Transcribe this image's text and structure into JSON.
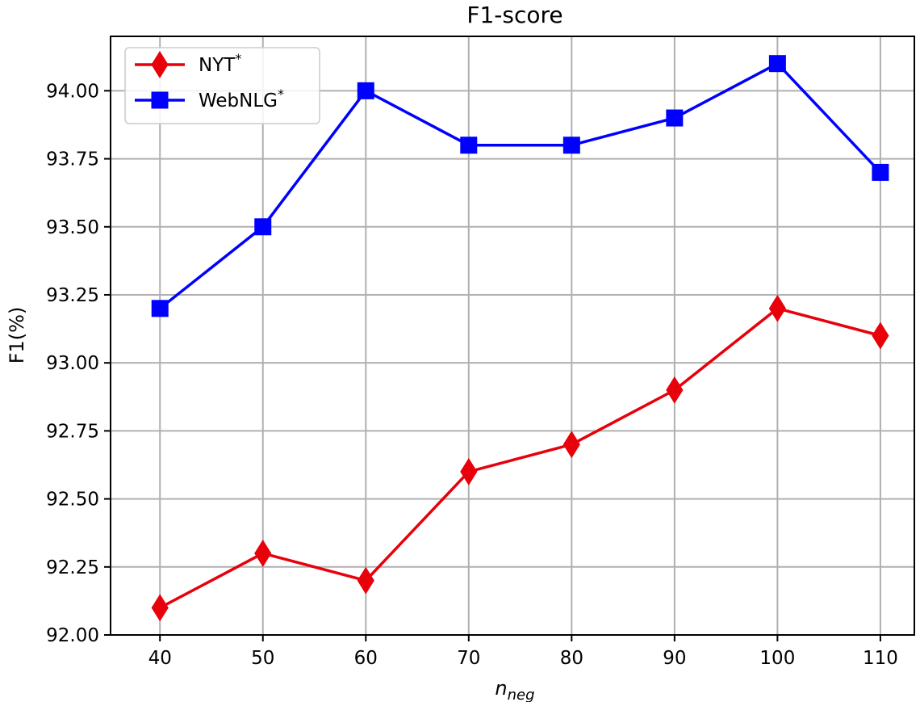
{
  "chart_data": {
    "type": "line",
    "title": "F1-score",
    "xlabel_main": "n",
    "xlabel_sub": "neg",
    "ylabel": "F1(%)",
    "x": [
      40,
      50,
      60,
      70,
      80,
      90,
      100,
      110
    ],
    "xlim": [
      35.2,
      113.3
    ],
    "ylim": [
      92.0,
      94.2
    ],
    "yticks": [
      "92.00",
      "92.25",
      "92.50",
      "92.75",
      "93.00",
      "93.25",
      "93.50",
      "93.75",
      "94.00"
    ],
    "xticks": [
      "40",
      "50",
      "60",
      "70",
      "80",
      "90",
      "100",
      "110"
    ],
    "grid": true,
    "legend_position": "upper left",
    "series": [
      {
        "name": "NYT",
        "name_sup": "*",
        "color": "#e8000b",
        "marker": "diamond",
        "values": [
          92.1,
          92.3,
          92.2,
          92.6,
          92.7,
          92.9,
          93.2,
          93.1
        ]
      },
      {
        "name": "WebNLG",
        "name_sup": "*",
        "color": "#0000ff",
        "marker": "square",
        "values": [
          93.2,
          93.5,
          94.0,
          93.8,
          93.8,
          93.9,
          94.1,
          93.7
        ]
      }
    ]
  }
}
